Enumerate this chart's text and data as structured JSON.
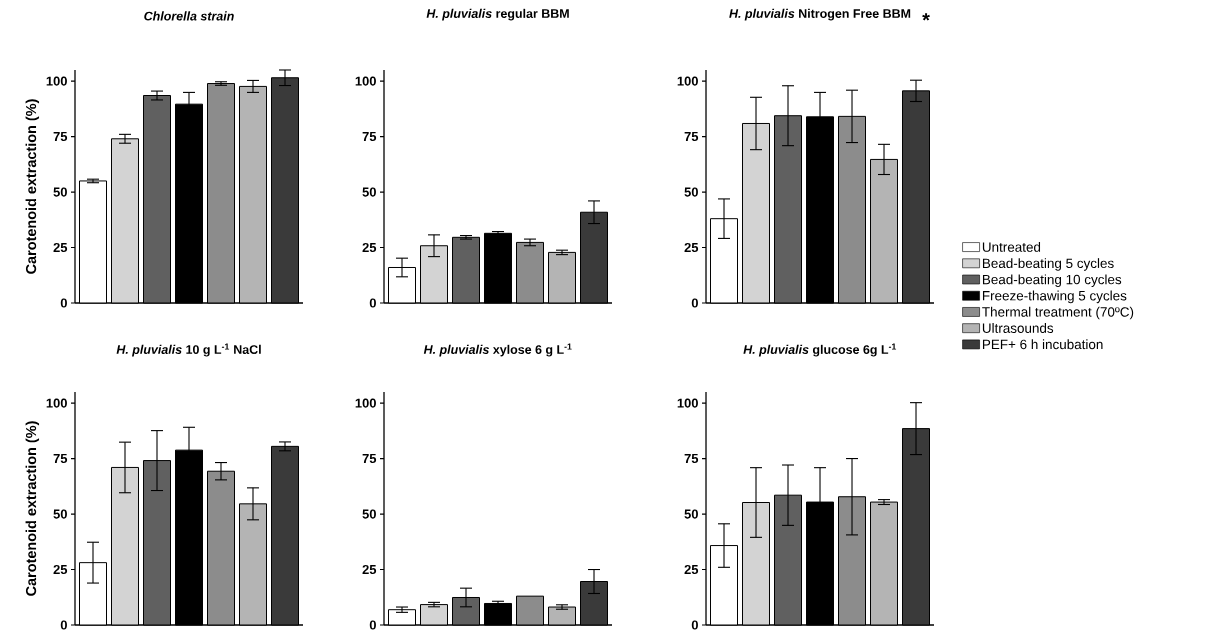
{
  "chart_data": [
    {
      "type": "bar",
      "title": "*Chlorella strain*",
      "ylabel": "Carotenoid extraction (%)",
      "categories": [
        null
      ],
      "ylim": [
        0,
        105
      ],
      "yticks": [
        0,
        25,
        50,
        75,
        100
      ],
      "series": [
        {
          "color": "#ffffff",
          "values": [
            55
          ],
          "errors": [
            0.8
          ]
        },
        {
          "color": "#d3d3d3",
          "values": [
            74
          ],
          "errors": [
            2
          ]
        },
        {
          "color": "#606060",
          "values": [
            93.5
          ],
          "errors": [
            2
          ]
        },
        {
          "color": "#000000",
          "values": [
            89.6
          ],
          "errors": [
            5.3
          ]
        },
        {
          "color": "#8c8c8c",
          "values": [
            98.9
          ],
          "errors": [
            0.8
          ]
        },
        {
          "color": "#b4b4b4",
          "values": [
            97.6
          ],
          "errors": [
            2.7
          ]
        },
        {
          "color": "#3a3a3a",
          "values": [
            101.5
          ],
          "errors": [
            3.5
          ]
        }
      ]
    },
    {
      "type": "bar",
      "title": "*H. pluvialis* regular BBM",
      "categories": [
        null
      ],
      "ylim": [
        0,
        105
      ],
      "yticks": [
        0,
        25,
        50,
        75,
        100
      ],
      "series": [
        {
          "color": "#ffffff",
          "values": [
            16
          ],
          "errors": [
            4.2
          ]
        },
        {
          "color": "#d3d3d3",
          "values": [
            25.8
          ],
          "errors": [
            4.9
          ]
        },
        {
          "color": "#606060",
          "values": [
            29.6
          ],
          "errors": [
            0.8
          ]
        },
        {
          "color": "#000000",
          "values": [
            31.4
          ],
          "errors": [
            0.8
          ]
        },
        {
          "color": "#8c8c8c",
          "values": [
            27.3
          ],
          "errors": [
            1.5
          ]
        },
        {
          "color": "#b4b4b4",
          "values": [
            22.8
          ],
          "errors": [
            1
          ]
        },
        {
          "color": "#3a3a3a",
          "values": [
            40.9
          ],
          "errors": [
            5.1
          ]
        }
      ]
    },
    {
      "type": "bar",
      "title": "*H. pluvialis* Nitrogen Free BBM",
      "annotations": [
        "*"
      ],
      "legend": "right",
      "categories": [
        null
      ],
      "ylim": [
        0,
        105
      ],
      "yticks": [
        0,
        25,
        50,
        75,
        100
      ],
      "series": [
        {
          "name": "Untreated",
          "color": "#ffffff",
          "values": [
            38
          ],
          "errors": [
            8.9
          ]
        },
        {
          "name": "Bead-beating 5 cycles",
          "color": "#d3d3d3",
          "values": [
            80.9
          ],
          "errors": [
            11.8
          ]
        },
        {
          "name": "Bead-beating 10 cycles",
          "color": "#606060",
          "values": [
            84.4
          ],
          "errors": [
            13.5
          ]
        },
        {
          "name": "Freeze-thawing 5 cycles",
          "color": "#000000",
          "values": [
            83.9
          ],
          "errors": [
            11
          ]
        },
        {
          "name": "Thermal treatment (70ºC)",
          "color": "#8c8c8c",
          "values": [
            84.1
          ],
          "errors": [
            11.8
          ]
        },
        {
          "name": "Ultrasounds",
          "color": "#b4b4b4",
          "values": [
            64.7
          ],
          "errors": [
            6.8
          ]
        },
        {
          "name": "PEF+ 6 h incubation",
          "color": "#3a3a3a",
          "values": [
            95.6
          ],
          "errors": [
            4.8
          ]
        }
      ]
    },
    {
      "type": "bar",
      "title": "*H. pluvialis* 10 g L$^{-1}$ NaCl",
      "ylabel": "Carotenoid extraction (%)",
      "categories": [
        null
      ],
      "ylim": [
        0,
        105
      ],
      "yticks": [
        0,
        25,
        50,
        75,
        100
      ],
      "series": [
        {
          "color": "#ffffff",
          "values": [
            28.1
          ],
          "errors": [
            9.2
          ]
        },
        {
          "color": "#d3d3d3",
          "values": [
            71
          ],
          "errors": [
            11.4
          ]
        },
        {
          "color": "#606060",
          "values": [
            74.1
          ],
          "errors": [
            13.5
          ]
        },
        {
          "color": "#000000",
          "values": [
            78.8
          ],
          "errors": [
            10.3
          ]
        },
        {
          "color": "#8c8c8c",
          "values": [
            69.3
          ],
          "errors": [
            3.9
          ]
        },
        {
          "color": "#b4b4b4",
          "values": [
            54.6
          ],
          "errors": [
            7.2
          ]
        },
        {
          "color": "#3a3a3a",
          "values": [
            80.5
          ],
          "errors": [
            2
          ]
        }
      ]
    },
    {
      "type": "bar",
      "title": "*H. pluvialis* xylose 6 g L$^{-1}$",
      "categories": [
        null
      ],
      "ylim": [
        0,
        105
      ],
      "yticks": [
        0,
        25,
        50,
        75,
        100
      ],
      "series": [
        {
          "color": "#ffffff",
          "values": [
            6.9
          ],
          "errors": [
            1.2
          ]
        },
        {
          "color": "#d3d3d3",
          "values": [
            9.2
          ],
          "errors": [
            1
          ]
        },
        {
          "color": "#606060",
          "values": [
            12.4
          ],
          "errors": [
            4.2
          ]
        },
        {
          "color": "#000000",
          "values": [
            9.7
          ],
          "errors": [
            1
          ]
        },
        {
          "color": "#8c8c8c",
          "values": [
            13
          ]
        },
        {
          "color": "#b4b4b4",
          "values": [
            8.1
          ],
          "errors": [
            1
          ]
        },
        {
          "color": "#3a3a3a",
          "values": [
            19.6
          ],
          "errors": [
            5.4
          ]
        }
      ]
    },
    {
      "type": "bar",
      "title": "*H. pluvialis* glucose 6g L$^{-1}$",
      "categories": [
        null
      ],
      "ylim": [
        0,
        105
      ],
      "yticks": [
        0,
        25,
        50,
        75,
        100
      ],
      "series": [
        {
          "color": "#ffffff",
          "values": [
            35.8
          ],
          "errors": [
            9.8
          ]
        },
        {
          "color": "#d3d3d3",
          "values": [
            55.2
          ],
          "errors": [
            15.7
          ]
        },
        {
          "color": "#606060",
          "values": [
            58.5
          ],
          "errors": [
            13.6
          ]
        },
        {
          "color": "#000000",
          "values": [
            55.4
          ],
          "errors": [
            15.5
          ]
        },
        {
          "color": "#8c8c8c",
          "values": [
            57.8
          ],
          "errors": [
            17.2
          ]
        },
        {
          "color": "#b4b4b4",
          "values": [
            55.4
          ],
          "errors": [
            1.1
          ]
        },
        {
          "color": "#3a3a3a",
          "values": [
            88.5
          ],
          "errors": [
            11.7
          ]
        }
      ]
    }
  ]
}
